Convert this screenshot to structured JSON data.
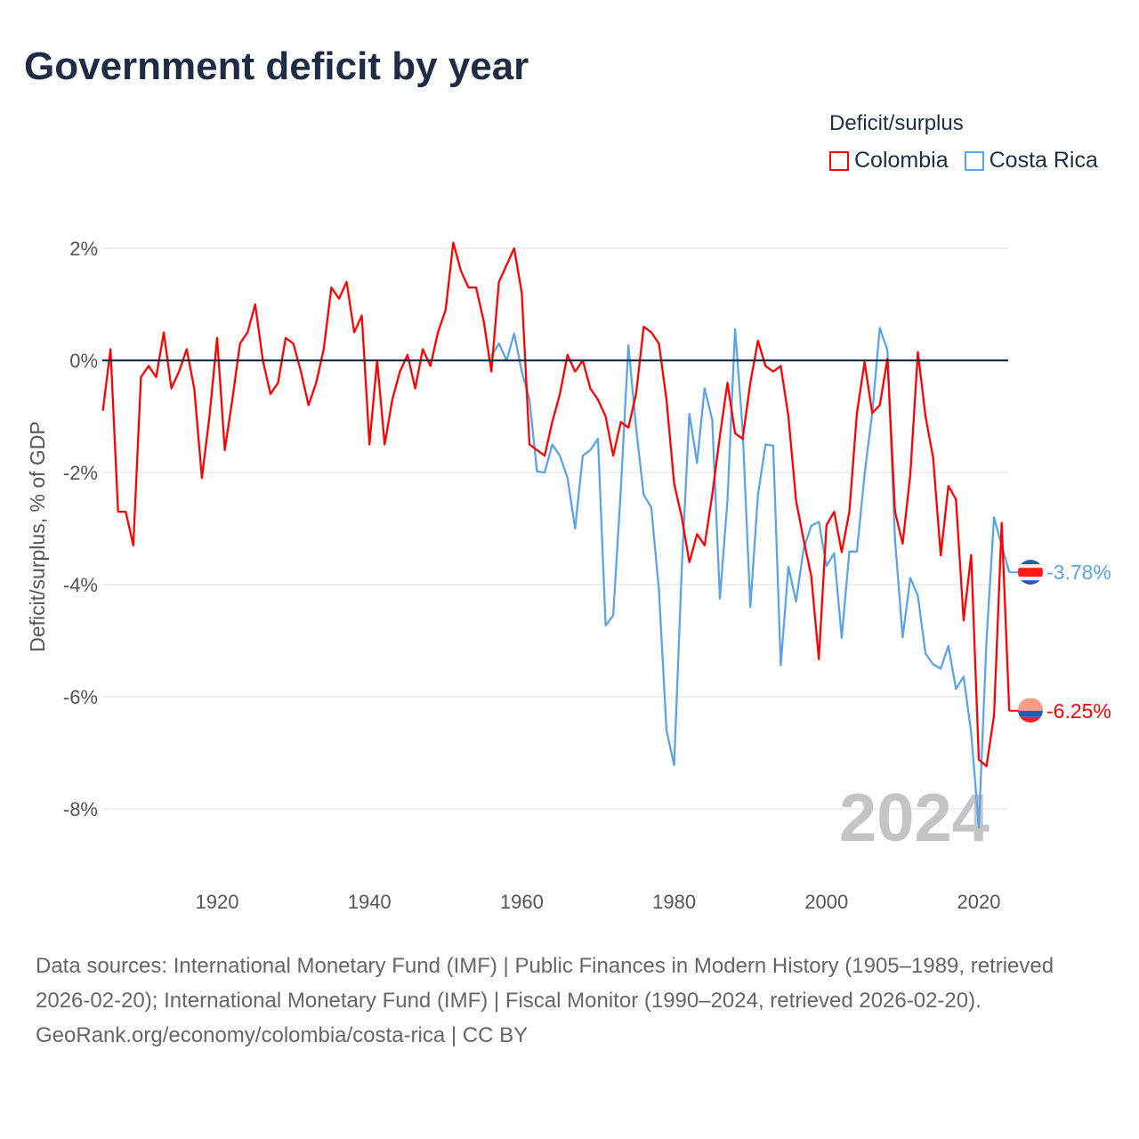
{
  "chart_data": {
    "type": "line",
    "title": "Government deficit by year",
    "ylabel": "Deficit/surplus, % of GDP",
    "xlabel": "",
    "ylim": [
      -9.1,
      2.3
    ],
    "xlim": [
      1905,
      2024
    ],
    "x_ticks": [
      1920,
      1940,
      1960,
      1980,
      2000,
      2020
    ],
    "x_tick_labels": [
      "1920",
      "1940",
      "1960",
      "1980",
      "2000",
      "2020"
    ],
    "y_ticks": [
      2,
      0,
      -2,
      -4,
      -6,
      -8
    ],
    "y_tick_labels": [
      "2%",
      "0%",
      "-2%",
      "-4%",
      "-6%",
      "-8%"
    ],
    "grid": true,
    "legend_title": "Deficit/surplus",
    "legend_placement": "top-right",
    "current_year_label": "2024",
    "series": [
      {
        "name": "Colombia",
        "color": "#ff0000",
        "start_year": 1905,
        "end_label": "-6.25%",
        "values": [
          -0.9,
          0.2,
          -2.7,
          -2.7,
          -3.3,
          -0.3,
          -0.1,
          -0.3,
          0.5,
          -0.5,
          -0.2,
          0.2,
          -0.5,
          -2.1,
          -1.0,
          0.4,
          -1.6,
          -0.7,
          0.3,
          0.5,
          1.0,
          0.0,
          -0.6,
          -0.4,
          0.4,
          0.3,
          -0.2,
          -0.8,
          -0.4,
          0.2,
          1.3,
          1.1,
          1.4,
          0.5,
          0.8,
          -1.5,
          0.0,
          -1.5,
          -0.7,
          -0.2,
          0.1,
          -0.5,
          0.2,
          -0.1,
          0.5,
          0.9,
          2.1,
          1.6,
          1.3,
          1.3,
          0.7,
          -0.2,
          1.4,
          1.7,
          2.0,
          1.2,
          -1.5,
          -1.6,
          -1.7,
          -1.1,
          -0.6,
          0.1,
          -0.2,
          0.0,
          -0.5,
          -0.7,
          -1.0,
          -1.7,
          -1.1,
          -1.2,
          -0.6,
          0.6,
          0.5,
          0.3,
          -0.7,
          -2.2,
          -2.8,
          -3.6,
          -3.1,
          -3.3,
          -2.4,
          -1.35,
          -0.4,
          -1.3,
          -1.4,
          -0.4,
          0.35,
          -0.1,
          -0.2,
          -0.1,
          -1.0,
          -2.5,
          -3.2,
          -3.85,
          -5.33,
          -2.94,
          -2.7,
          -3.42,
          -2.7,
          -0.94,
          -0.03,
          -0.94,
          -0.8,
          0.03,
          -2.7,
          -3.27,
          -2.03,
          0.15,
          -1.0,
          -1.73,
          -3.48,
          -2.24,
          -2.48,
          -4.64,
          -3.47,
          -7.12,
          -7.24,
          -6.33,
          -2.9,
          -6.25
        ]
      },
      {
        "name": "Costa Rica",
        "color": "#5ca4e8",
        "start_year": 1956,
        "end_label": "-3.78%",
        "values": [
          0.08,
          0.3,
          0.0,
          0.48,
          -0.2,
          -0.7,
          -1.98,
          -2.0,
          -1.5,
          -1.7,
          -2.1,
          -3.0,
          -1.7,
          -1.6,
          -1.4,
          -4.73,
          -4.55,
          -2.3,
          0.27,
          -1.2,
          -2.4,
          -2.62,
          -4.1,
          -6.6,
          -7.22,
          -3.7,
          -0.95,
          -1.83,
          -0.5,
          -1.06,
          -4.25,
          -2.5,
          0.56,
          -1.24,
          -4.4,
          -2.4,
          -1.5,
          -1.52,
          -5.44,
          -3.68,
          -4.3,
          -3.36,
          -2.95,
          -2.88,
          -3.67,
          -3.44,
          -4.95,
          -3.41,
          -3.41,
          -2.03,
          -0.94,
          0.58,
          0.18,
          -3.2,
          -4.94,
          -3.88,
          -4.2,
          -5.23,
          -5.42,
          -5.5,
          -5.09,
          -5.86,
          -5.64,
          -6.64,
          -8.33,
          -5.0,
          -2.8,
          -3.3,
          -3.78
        ]
      }
    ]
  },
  "footer": {
    "sources": "Data sources: International Monetary Fund (IMF) | Public Finances in Modern History (1905–1989, retrieved 2026-02-20); International Monetary Fund (IMF) | Fiscal Monitor (1990–2024, retrieved 2026-02-20).",
    "credit": "GeoRank.org/economy/colombia/costa-rica | CC BY"
  }
}
